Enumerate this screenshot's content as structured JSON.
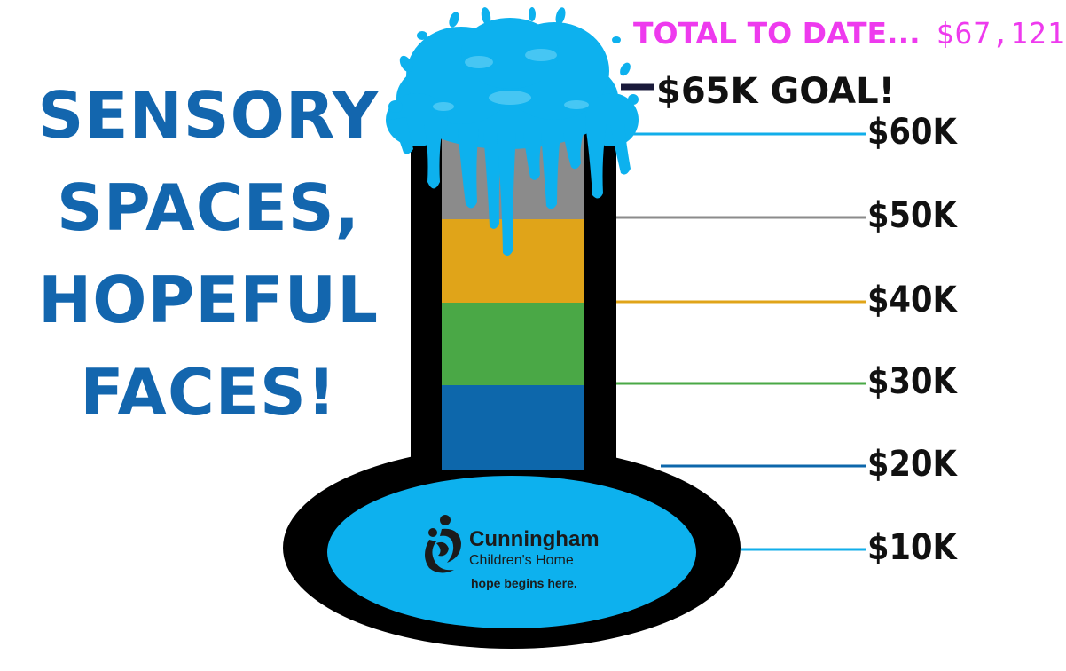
{
  "headline": {
    "lines": [
      "SENSORY",
      "SPACES,",
      "HOPEFUL",
      "FACES!"
    ]
  },
  "total": {
    "label": "TOTAL TO DATE...",
    "amount": "$67,121"
  },
  "goal": {
    "label": "$65K GOAL!"
  },
  "chart_data": {
    "type": "bar",
    "categories": [
      "$10K",
      "$20K",
      "$30K",
      "$40K",
      "$50K",
      "$60K"
    ],
    "series": [
      {
        "values": [
          10000,
          20000,
          30000,
          40000,
          50000,
          60000
        ]
      }
    ],
    "total_raised": 67121,
    "goal": 65000,
    "goal_reached": true
  },
  "ticks": [
    {
      "label": "$10K",
      "color": "#11aeea"
    },
    {
      "label": "$20K",
      "color": "#0d67ab"
    },
    {
      "label": "$30K",
      "color": "#4aa846"
    },
    {
      "label": "$40K",
      "color": "#e0a419"
    },
    {
      "label": "$50K",
      "color": "#8b8b8b"
    },
    {
      "label": "$60K",
      "color": "#11aeea"
    }
  ],
  "logo": {
    "name": "Cunningham",
    "sub": "Children's Home",
    "tagline": "hope begins here."
  },
  "colors": {
    "headline": "#1366ae",
    "total": "#ee3aee",
    "water": "#0db1ee",
    "outline": "#000000"
  }
}
